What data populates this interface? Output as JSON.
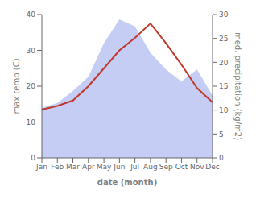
{
  "chart_data": {
    "type": "combo",
    "categories": [
      "Jan",
      "Feb",
      "Mar",
      "Apr",
      "May",
      "Jun",
      "Jul",
      "Aug",
      "Sep",
      "Oct",
      "Nov",
      "Dec"
    ],
    "xlabel": "date (month)",
    "ylabel": "max temp (C)",
    "y2label": "med. precipitation (kg/m2)",
    "ylim": [
      0,
      40
    ],
    "yticks": [
      0,
      10,
      20,
      30,
      40
    ],
    "y2lim": [
      0,
      30
    ],
    "y2ticks": [
      0,
      5,
      10,
      15,
      20,
      25,
      30
    ],
    "grid": false,
    "series": [
      {
        "type": "area",
        "axis": "y2",
        "color": "#c5cdf5",
        "values": [
          10.5,
          11.5,
          14.0,
          17.0,
          24.0,
          29.0,
          27.5,
          22.0,
          18.5,
          16.0,
          18.5,
          13.0
        ]
      },
      {
        "type": "line",
        "color": "#c0392b",
        "values": [
          13.5,
          14.5,
          16.0,
          20.0,
          25.0,
          30.0,
          33.5,
          37.5,
          32.0,
          26.0,
          19.5,
          15.5
        ]
      }
    ]
  }
}
